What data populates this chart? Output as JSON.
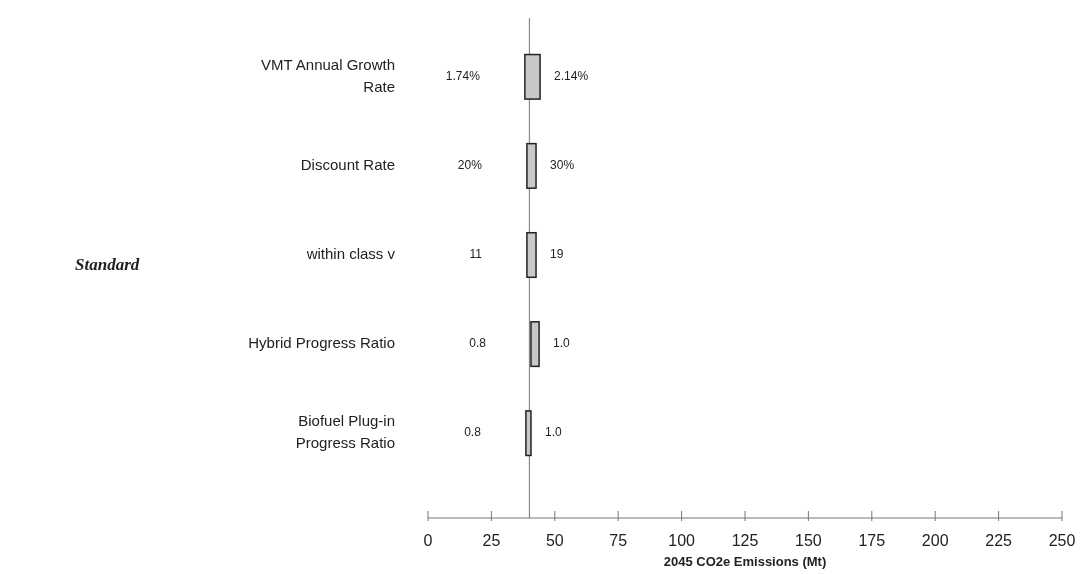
{
  "chart_data": {
    "type": "bar",
    "orientation": "horizontal",
    "xlabel": "2045 CO2e Emissions (Mt)",
    "categories": [
      "VMT Annual Growth Rate",
      "Discount Rate",
      "within class v",
      "Hybrid Progress Ratio",
      "Biofuel Plug-in Progress Ratio"
    ],
    "base": [
      38.2,
      39,
      39,
      40.6,
      38.6
    ],
    "values": [
      6,
      3.6,
      3.6,
      3.2,
      2
    ],
    "color": "#c8c8c8",
    "xlim": [
      0,
      250
    ],
    "xticks": [
      0,
      25,
      50,
      75,
      100,
      125,
      150,
      175,
      200,
      225,
      250
    ],
    "grid": false,
    "ref_lines": [
      {
        "axis": "x",
        "value": 40,
        "label": null
      }
    ],
    "annotations": [
      "Standard",
      "1.74%",
      "2.14%",
      "20%",
      "30%",
      "11",
      "19",
      "0.8",
      "1.0",
      "0.8",
      "1.0"
    ]
  }
}
